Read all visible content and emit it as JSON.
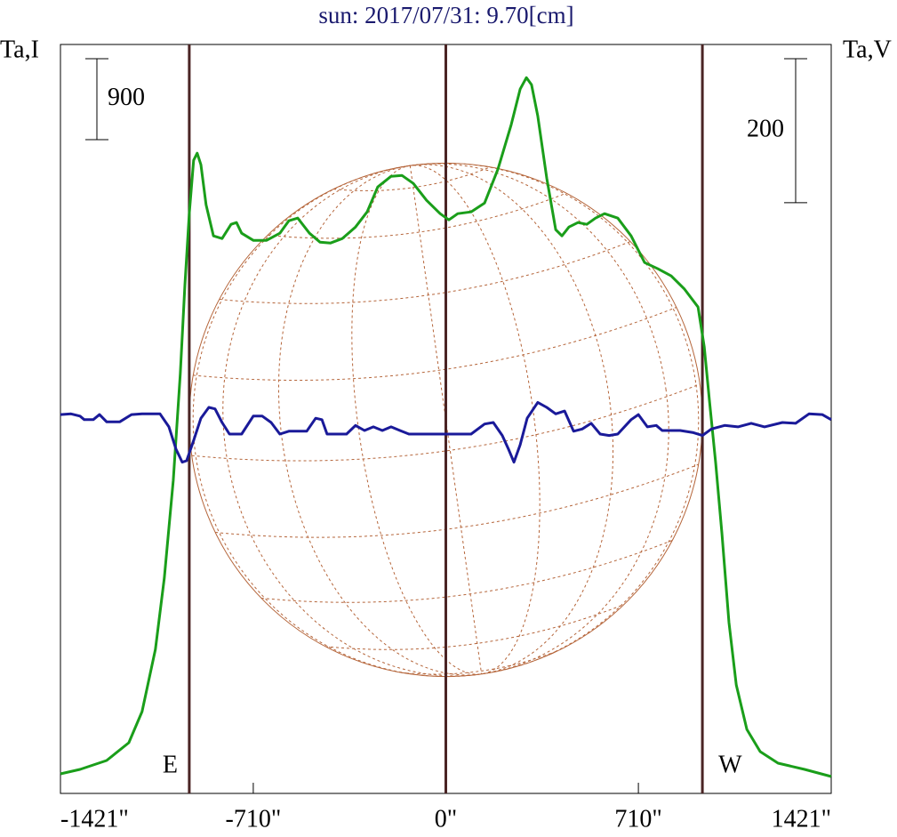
{
  "chart_data": {
    "type": "line",
    "title": "sun: 2017/07/31: 9.70[cm]",
    "ylabel": "Ta,I",
    "y2label": "Ta,V",
    "xlim": [
      -1421,
      1421
    ],
    "xticks": [
      {
        "value": -1421,
        "label": "-1421\""
      },
      {
        "value": -710,
        "label": "-710\""
      },
      {
        "value": 0,
        "label": "0\""
      },
      {
        "value": 710,
        "label": "710\""
      },
      {
        "value": 1421,
        "label": "1421\""
      }
    ],
    "ylim": [
      0,
      8330
    ],
    "y2lim": [
      -520,
      520
    ],
    "scale_bars": [
      {
        "axis": "y",
        "value": 900
      },
      {
        "axis": "y2",
        "value": 200
      }
    ],
    "markers": [
      {
        "x": -946,
        "label": "E"
      },
      {
        "x": 0
      },
      {
        "x": 946,
        "label": "W"
      }
    ],
    "series": [
      {
        "name": "Ta,I",
        "color": "#1a9e1a",
        "x": [
          -1421,
          -1349,
          -1251,
          -1169,
          -1120,
          -1071,
          -1038,
          -1005,
          -979,
          -962,
          -946,
          -930,
          -917,
          -903,
          -884,
          -857,
          -825,
          -792,
          -772,
          -753,
          -710,
          -661,
          -612,
          -579,
          -546,
          -503,
          -464,
          -425,
          -382,
          -333,
          -290,
          -251,
          -202,
          -162,
          -120,
          -71,
          -21,
          11,
          44,
          93,
          143,
          192,
          241,
          274,
          297,
          316,
          339,
          372,
          405,
          428,
          454,
          487,
          520,
          552,
          585,
          634,
          683,
          733,
          782,
          831,
          880,
          930,
          953,
          972,
          995,
          1018,
          1044,
          1071,
          1110,
          1159,
          1225,
          1323,
          1421
        ],
        "values": [
          218,
          267,
          366,
          564,
          910,
          1602,
          2393,
          3481,
          4668,
          5657,
          6448,
          7042,
          7121,
          6992,
          6547,
          6201,
          6171,
          6330,
          6349,
          6231,
          6152,
          6152,
          6231,
          6369,
          6399,
          6231,
          6132,
          6122,
          6171,
          6300,
          6468,
          6745,
          6864,
          6874,
          6785,
          6597,
          6448,
          6379,
          6448,
          6468,
          6567,
          6943,
          7437,
          7833,
          7961,
          7882,
          7536,
          6844,
          6270,
          6201,
          6300,
          6349,
          6330,
          6399,
          6448,
          6399,
          6201,
          5904,
          5835,
          5756,
          5608,
          5410,
          4965,
          4371,
          3679,
          2888,
          1899,
          1207,
          712,
          465,
          336,
          267,
          188
        ]
      },
      {
        "name": "Ta,V",
        "color": "#1a1a99",
        "axis": "y2",
        "x": [
          -1421,
          -1382,
          -1349,
          -1333,
          -1300,
          -1277,
          -1251,
          -1202,
          -1159,
          -1120,
          -1054,
          -1021,
          -995,
          -972,
          -956,
          -930,
          -903,
          -874,
          -851,
          -825,
          -798,
          -753,
          -710,
          -677,
          -644,
          -612,
          -579,
          -513,
          -480,
          -457,
          -438,
          -366,
          -333,
          -300,
          -267,
          -234,
          -202,
          -169,
          -136,
          -5,
          93,
          143,
          175,
          208,
          231,
          251,
          274,
          300,
          339,
          372,
          405,
          438,
          471,
          503,
          536,
          569,
          602,
          634,
          683,
          710,
          743,
          776,
          798,
          864,
          913,
          946,
          979,
          1028,
          1077,
          1126,
          1175,
          1241,
          1290,
          1339,
          1388,
          1421
        ],
        "values": [
          6,
          7,
          4,
          -1,
          -1,
          6,
          -4,
          -4,
          6,
          7,
          7,
          -11,
          -42,
          -60,
          -58,
          -30,
          1,
          16,
          14,
          -5,
          -21,
          -21,
          4,
          4,
          -5,
          -21,
          -17,
          -17,
          1,
          -1,
          -21,
          -21,
          -9,
          -16,
          -11,
          -16,
          -11,
          -16,
          -21,
          -21,
          -21,
          -7,
          -5,
          -23,
          -42,
          -60,
          -36,
          1,
          23,
          16,
          7,
          11,
          -17,
          -14,
          -6,
          -21,
          -23,
          -21,
          -1,
          6,
          -11,
          -9,
          -16,
          -16,
          -19,
          -23,
          -14,
          -9,
          -11,
          -6,
          -11,
          -5,
          -6,
          7,
          6,
          -1
        ]
      }
    ]
  }
}
